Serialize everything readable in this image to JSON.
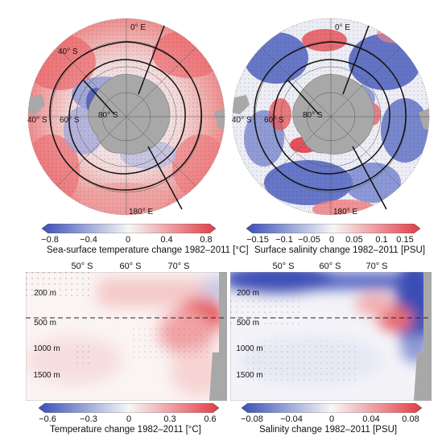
{
  "maps": {
    "sst": {
      "labels": {
        "lon_top": "0° E",
        "lon_bottom": "180° E",
        "lon_left": "40° S",
        "lat_60": "60° S",
        "lat_80": "80° S",
        "lat_40_ring": "40° S"
      }
    },
    "sss": {
      "labels": {
        "lon_top": "0° E",
        "lon_bottom": "180° E",
        "lon_left": "40° S",
        "lat_60": "60° S",
        "lat_80": "80° S"
      }
    }
  },
  "colorbars": {
    "sst": {
      "ticks": [
        "−0.8",
        "−0.4",
        "0",
        "0.4",
        "0.8"
      ],
      "label": "Sea-surface temperature change 1982–2011 [°C]"
    },
    "sss": {
      "ticks": [
        "−0.15",
        "−0.1",
        "−0.05",
        "0",
        "0.05",
        "0.1",
        "0.15"
      ],
      "label": "Surface salinity change 1982–2011 [PSU]"
    },
    "temp": {
      "ticks": [
        "−0.6",
        "−0.3",
        "0",
        "0.3",
        "0.6"
      ],
      "label": "Temperature change 1982–2011 [°C]"
    },
    "sal": {
      "ticks": [
        "−0.08",
        "−0.04",
        "0",
        "0.04",
        "0.08"
      ],
      "label": "Salinity change 1982–2011 [PSU]"
    }
  },
  "sections": {
    "lat_ticks": [
      "50° S",
      "60° S",
      "70° S"
    ],
    "depth_ticks": [
      "200 m",
      "500 m",
      "1000 m",
      "1500 m"
    ]
  },
  "colors": {
    "warm": "#e8434a",
    "cool": "#3a4fb5",
    "land": "#a8a8a8",
    "front": "#111111"
  }
}
